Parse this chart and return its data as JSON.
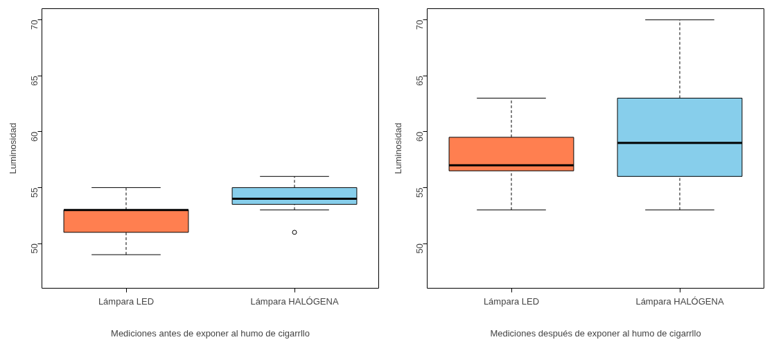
{
  "chart_data": [
    {
      "type": "box",
      "xlabel": "Mediciones antes de exponer al humo de cigarrllo",
      "ylabel": "Luminosidad",
      "categories": [
        "Lámpara LED",
        "Lámpara HALÓGENA"
      ],
      "colors": [
        "#ff7f50",
        "#87ceeb"
      ],
      "boxes": [
        {
          "low": 49,
          "q1": 51,
          "median": 53,
          "q3": 53,
          "high": 55
        },
        {
          "low": 53,
          "q1": 53.5,
          "median": 54,
          "q3": 55,
          "high": 56,
          "outliers": [
            51
          ]
        }
      ],
      "ylim": [
        46,
        71
      ],
      "yticks": [
        50,
        55,
        60,
        65,
        70
      ],
      "grid": false
    },
    {
      "type": "box",
      "xlabel": "Mediciones después de exponer al humo de cigarrllo",
      "ylabel": "Luminosidad",
      "categories": [
        "Lámpara LED",
        "Lámpara HALÓGENA"
      ],
      "colors": [
        "#ff7f50",
        "#87ceeb"
      ],
      "boxes": [
        {
          "low": 53,
          "q1": 56.5,
          "median": 57,
          "q3": 59.5,
          "high": 63
        },
        {
          "low": 53,
          "q1": 56,
          "median": 59,
          "q3": 63,
          "high": 70
        }
      ],
      "ylim": [
        46,
        71
      ],
      "yticks": [
        50,
        55,
        60,
        65,
        70
      ],
      "grid": false
    }
  ]
}
